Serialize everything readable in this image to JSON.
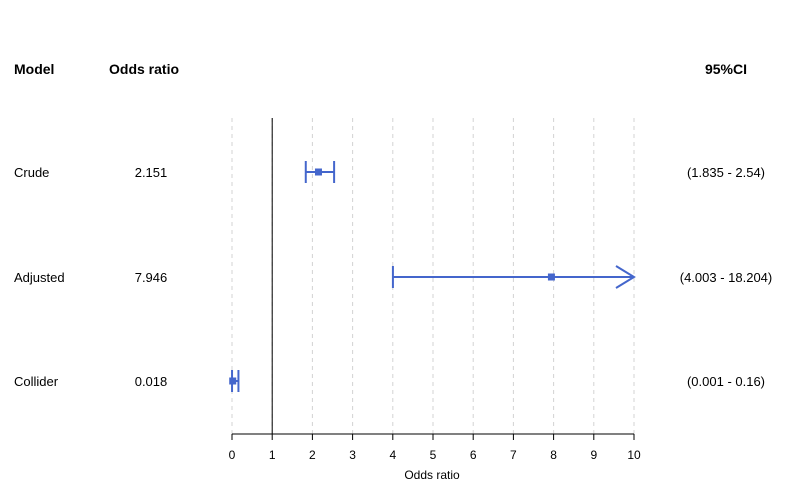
{
  "chart_data": {
    "type": "forest",
    "columns": {
      "model": "Model",
      "odds_ratio": "Odds ratio",
      "ci": "95%CI"
    },
    "rows": [
      {
        "model": "Crude",
        "or": 2.151,
        "or_label": "2.151",
        "lower": 1.835,
        "upper": 2.54,
        "ci_label": "(1.835 - 2.54)"
      },
      {
        "model": "Adjusted",
        "or": 7.946,
        "or_label": "7.946",
        "lower": 4.003,
        "upper": 18.204,
        "ci_label": "(4.003 - 18.204)"
      },
      {
        "model": "Collider",
        "or": 0.018,
        "or_label": "0.018",
        "lower": 0.001,
        "upper": 0.16,
        "ci_label": "(0.001 - 0.16)"
      }
    ],
    "xlabel": "Odds ratio",
    "xlim": [
      0,
      10
    ],
    "xticks": [
      "0",
      "1",
      "2",
      "3",
      "4",
      "5",
      "6",
      "7",
      "8",
      "9",
      "10"
    ],
    "reference_line": 1,
    "grid": "vertical-dashed",
    "colors": {
      "marker": "#4466cc",
      "reference": "#000000",
      "grid": "#d3d3d3"
    }
  }
}
